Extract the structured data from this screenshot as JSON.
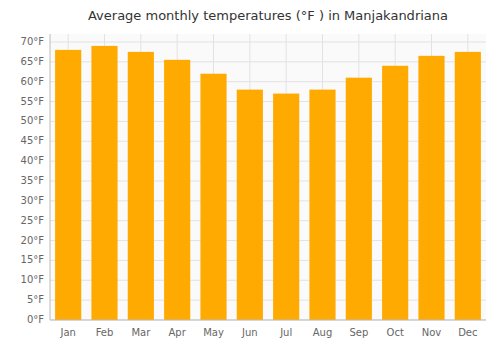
{
  "chart_data": {
    "type": "bar",
    "title": "Average monthly temperatures (°F ) in Manjakandriana",
    "categories": [
      "Jan",
      "Feb",
      "Mar",
      "Apr",
      "May",
      "Jun",
      "Jul",
      "Aug",
      "Sep",
      "Oct",
      "Nov",
      "Dec"
    ],
    "values": [
      68,
      69,
      67.5,
      65.5,
      62,
      58,
      57,
      58,
      61,
      64,
      66.5,
      67.5
    ],
    "color": "#FFAA00",
    "ylim": [
      0,
      72
    ],
    "yticks": [
      {
        "value": 0,
        "label": "0°F"
      },
      {
        "value": 5,
        "label": "5°F"
      },
      {
        "value": 10,
        "label": "10°F"
      },
      {
        "value": 15,
        "label": "15°F"
      },
      {
        "value": 20,
        "label": "20°F"
      },
      {
        "value": 25,
        "label": "25°F"
      },
      {
        "value": 30,
        "label": "30°F"
      },
      {
        "value": 35,
        "label": "35°F"
      },
      {
        "value": 40,
        "label": "40°F"
      },
      {
        "value": 45,
        "label": "45°F"
      },
      {
        "value": 50,
        "label": "50°F"
      },
      {
        "value": 55,
        "label": "55°F"
      },
      {
        "value": 60,
        "label": "60°F"
      },
      {
        "value": 65,
        "label": "65°F"
      },
      {
        "value": 70,
        "label": "70°F"
      }
    ],
    "grid": true
  }
}
